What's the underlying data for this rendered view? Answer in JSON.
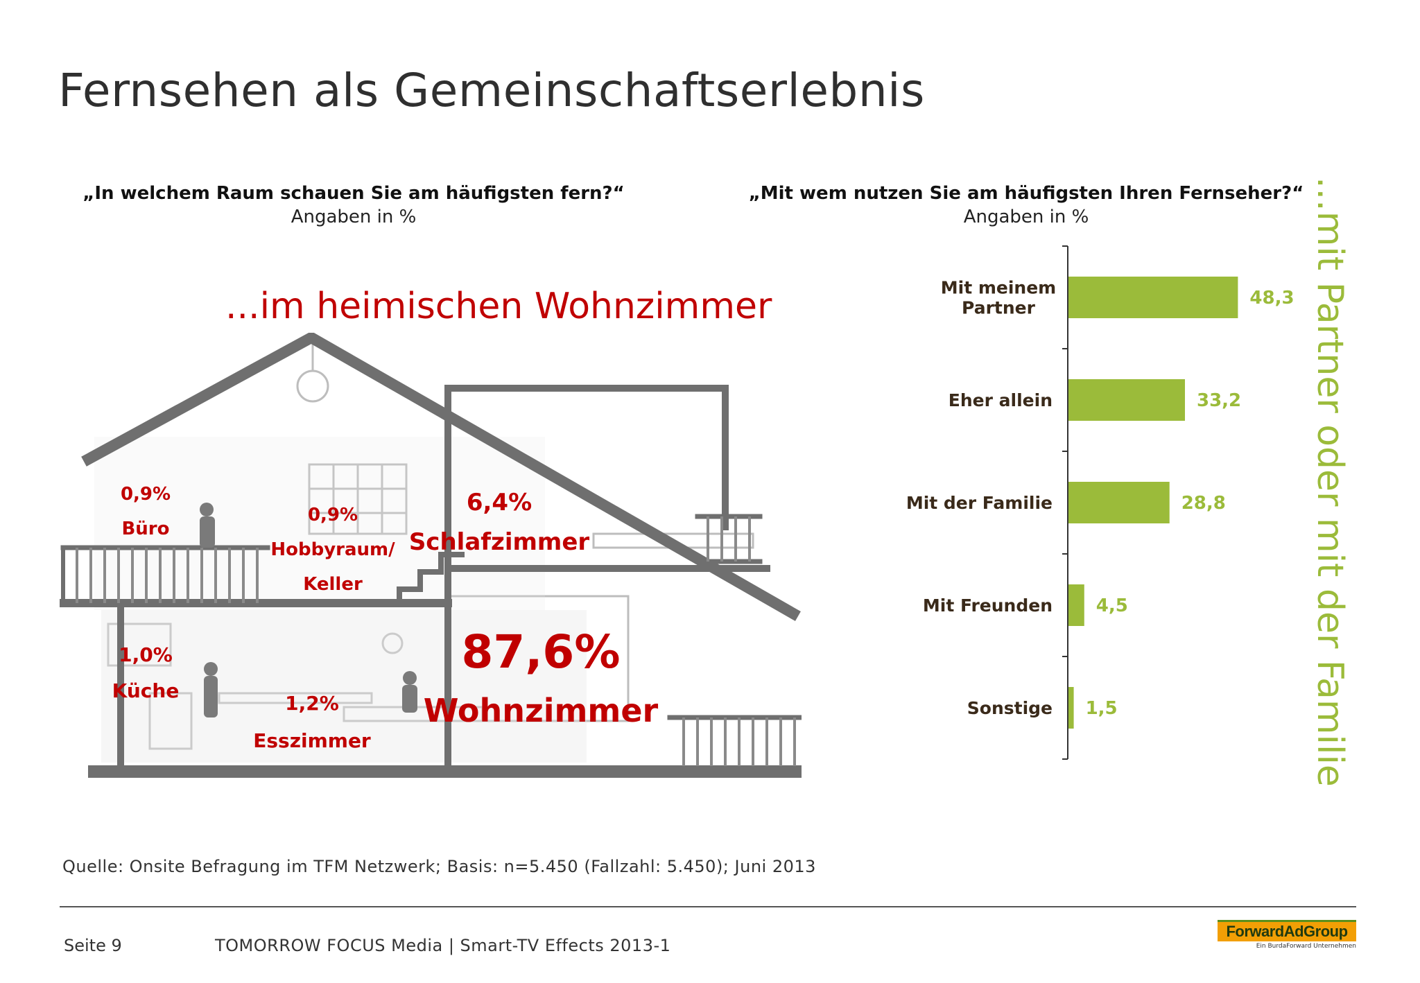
{
  "title": "Fernsehen als Gemeinschaftserlebnis",
  "left_question": {
    "question": "„In welchem Raum schauen Sie am häufigsten fern?“",
    "unit": "Angaben in %"
  },
  "right_question": {
    "question": "„Mit wem nutzen Sie am häufigsten Ihren Fernseher?“",
    "unit": "Angaben in %"
  },
  "house_slogan": "...im heimischen Wohnzimmer",
  "side_slogan": "...mit Partner oder mit der Familie",
  "rooms": {
    "buero": {
      "value": "0,9%",
      "name": "Büro"
    },
    "hobby": {
      "value": "0,9%",
      "name_1": "Hobbyraum/",
      "name_2": "Keller"
    },
    "schlaf": {
      "value": "6,4%",
      "name": "Schlafzimmer"
    },
    "kueche": {
      "value": "1,0%",
      "name": "Küche"
    },
    "ess": {
      "value": "1,2%",
      "name": "Esszimmer"
    },
    "wohn": {
      "value": "87,6%",
      "name": "Wohnzimmer"
    }
  },
  "chart_data": [
    {
      "type": "bar",
      "orientation": "horizontal",
      "title": "„Mit wem nutzen Sie am häufigsten Ihren Fernseher?“",
      "subtitle": "Angaben in %",
      "categories": [
        "Mit meinem Partner",
        "Eher allein",
        "Mit der Familie",
        "Mit Freunden",
        "Sonstige"
      ],
      "values": [
        48.3,
        33.2,
        28.8,
        4.5,
        1.5
      ],
      "value_labels": [
        "48,3",
        "33,2",
        "28,8",
        "4,5",
        "1,5"
      ],
      "bar_color": "#9bbb3a",
      "label_color": "#9bbb3a",
      "category_color": "#3a2a1a",
      "xlim": [
        0,
        100
      ],
      "grid": false
    },
    {
      "type": "table",
      "title": "„In welchem Raum schauen Sie am häufigsten fern?“",
      "subtitle": "Angaben in %",
      "categories": [
        "Büro",
        "Hobbyraum/Keller",
        "Schlafzimmer",
        "Küche",
        "Esszimmer",
        "Wohnzimmer"
      ],
      "values": [
        0.9,
        0.9,
        6.4,
        1.0,
        1.2,
        87.6
      ]
    }
  ],
  "source": "Quelle: Onsite Befragung im TFM Netzwerk; Basis: n=5.450 (Fallzahl: 5.450); Juni 2013",
  "footer": {
    "page": "Seite 9",
    "text": "TOMORROW FOCUS Media  |  Smart-TV Effects 2013-1"
  },
  "logo": {
    "name": "ForwardAdGroup",
    "sub": "Ein BurdaForward Unternehmen"
  },
  "colors": {
    "accent_red": "#c00000",
    "accent_green": "#9bbb3a",
    "house_gray": "#6f6f6f"
  }
}
